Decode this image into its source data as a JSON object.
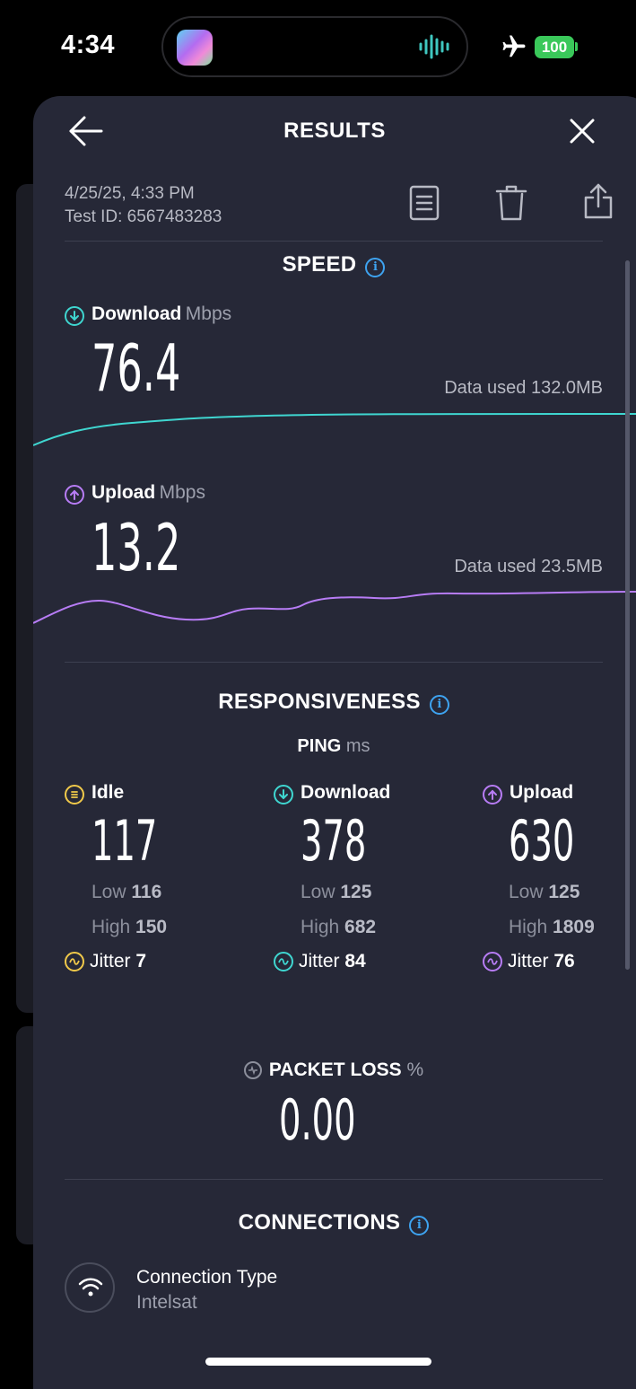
{
  "status_bar": {
    "time": "4:34",
    "battery": "100"
  },
  "header": {
    "title": "RESULTS"
  },
  "meta": {
    "date": "4/25/25, 4:33 PM",
    "test_id": "Test ID: 6567483283"
  },
  "speed": {
    "title": "SPEED",
    "download": {
      "label": "Download",
      "unit": "Mbps",
      "value": "76.4",
      "data_used": "Data used 132.0MB"
    },
    "upload": {
      "label": "Upload",
      "unit": "Mbps",
      "value": "13.2",
      "data_used": "Data used 23.5MB"
    }
  },
  "responsiveness": {
    "title": "RESPONSIVENESS",
    "ping_label": "PING",
    "ping_unit": "ms",
    "low_label": "Low",
    "high_label": "High",
    "jitter_label": "Jitter",
    "columns": [
      {
        "label": "Idle",
        "value": "117",
        "low": "116",
        "high": "150",
        "jitter": "7",
        "color": "#f0c94a"
      },
      {
        "label": "Download",
        "value": "378",
        "low": "125",
        "high": "682",
        "jitter": "84",
        "color": "#3fd6d0"
      },
      {
        "label": "Upload",
        "value": "630",
        "low": "125",
        "high": "1809",
        "jitter": "76",
        "color": "#b77cf5"
      }
    ]
  },
  "packet_loss": {
    "label": "PACKET LOSS",
    "unit": "%",
    "value": "0.00"
  },
  "connections": {
    "title": "CONNECTIONS",
    "type_label": "Connection Type",
    "type_value": "Intelsat"
  },
  "colors": {
    "download": "#3fd6d0",
    "upload": "#b77cf5",
    "info": "#3ea3f0",
    "sheet": "#262837"
  }
}
